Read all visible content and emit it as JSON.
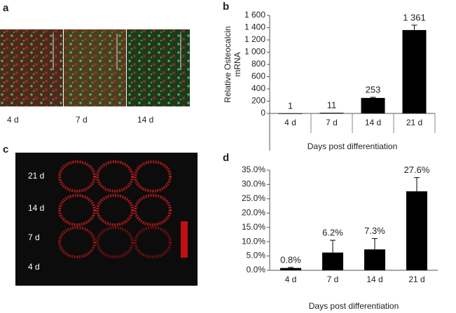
{
  "panels": {
    "a": {
      "label": "a",
      "images": [
        "4 d",
        "7 d",
        "14 d"
      ]
    },
    "c": {
      "label": "c",
      "rows": [
        "21 d",
        "14 d",
        "7 d",
        "4 d"
      ]
    }
  },
  "chart_data": [
    {
      "type": "bar",
      "panel_label": "b",
      "ylabel": [
        "Relative Osteocalcin",
        "mRNA"
      ],
      "xlabel": "Days post differentiation",
      "categories": [
        "4 d",
        "7 d",
        "14 d",
        "21 d"
      ],
      "values": [
        1,
        11,
        253,
        1361
      ],
      "value_labels": [
        "1",
        "11",
        "253",
        "1 361"
      ],
      "errors": [
        0,
        0,
        10,
        80
      ],
      "color": "#000000",
      "ylim": [
        0,
        1600
      ],
      "yticks": [
        0,
        200,
        400,
        600,
        800,
        {
          "value": 1000,
          "label": "1 000"
        },
        {
          "value": 1200,
          "label": "1 200"
        },
        {
          "value": 1400,
          "label": "1 400"
        },
        {
          "value": 1600,
          "label": "1 600"
        }
      ]
    },
    {
      "type": "bar",
      "panel_label": "d",
      "xlabel": "Days post differentiation",
      "categories": [
        "4 d",
        "7 d",
        "14 d",
        "21 d"
      ],
      "values": [
        0.8,
        6.2,
        7.3,
        27.6
      ],
      "value_labels": [
        "0.8%",
        "6.2%",
        "7.3%",
        "27.6%"
      ],
      "errors": [
        0.2,
        4.3,
        3.8,
        4.8
      ],
      "color": "#000000",
      "ylim": [
        0,
        35
      ],
      "yticks": [
        {
          "value": 0,
          "label": "0.0%"
        },
        {
          "value": 5,
          "label": "5.0%"
        },
        {
          "value": 10,
          "label": "10.0%"
        },
        {
          "value": 15,
          "label": "15.0%"
        },
        {
          "value": 20,
          "label": "20.0%"
        },
        {
          "value": 25,
          "label": "25.0%"
        },
        {
          "value": 30,
          "label": "30.0%"
        },
        {
          "value": 35,
          "label": "35.0%"
        }
      ]
    }
  ]
}
